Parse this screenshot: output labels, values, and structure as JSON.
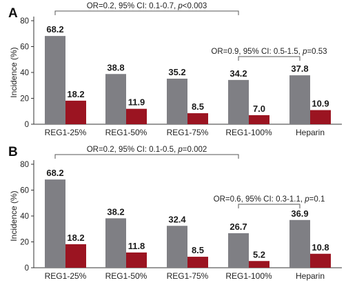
{
  "colors": {
    "series1": "#7f7f84",
    "series2": "#9b1421",
    "axis": "#333333",
    "bracket": "#555555"
  },
  "chart_data": [
    {
      "type": "bar",
      "panel_label": "A",
      "ylabel": "Incidence (%)",
      "ylim": [
        0,
        80
      ],
      "yticks": [
        0,
        20,
        40,
        60,
        80
      ],
      "categories": [
        "REG1-25%",
        "REG1-50%",
        "REG1-75%",
        "REG1-100%",
        "Heparin"
      ],
      "series": [
        {
          "values": [
            68.2,
            38.8,
            35.2,
            34.2,
            37.8
          ]
        },
        {
          "values": [
            18.2,
            11.9,
            8.5,
            7.0,
            10.9
          ]
        }
      ],
      "value_labels": [
        [
          "68.2",
          "38.8",
          "35.2",
          "34.2",
          "37.8"
        ],
        [
          "18.2",
          "11.9",
          "8.5",
          "7.0",
          "10.9"
        ]
      ],
      "annotations": [
        {
          "from": 0,
          "to": 3,
          "text": "OR=0.2, 95% CI: 0.1-0.7, ",
          "p": "p",
          "ptext": "<0.003"
        },
        {
          "from": 3,
          "to": 4,
          "text": "OR=0.9, 95% CI: 0.5-1.5, ",
          "p": "p",
          "ptext": "=0.53"
        }
      ]
    },
    {
      "type": "bar",
      "panel_label": "B",
      "ylabel": "Incidence (%)",
      "ylim": [
        0,
        80
      ],
      "yticks": [
        0,
        20,
        40,
        60,
        80
      ],
      "categories": [
        "REG1-25%",
        "REG1-50%",
        "REG1-75%",
        "REG1-100%",
        "Heparin"
      ],
      "series": [
        {
          "values": [
            68.2,
            38.2,
            32.4,
            26.7,
            36.9
          ]
        },
        {
          "values": [
            18.2,
            11.8,
            8.5,
            5.2,
            10.8
          ]
        }
      ],
      "value_labels": [
        [
          "68.2",
          "38.2",
          "32.4",
          "26.7",
          "36.9"
        ],
        [
          "18.2",
          "11.8",
          "8.5",
          "5.2",
          "10.8"
        ]
      ],
      "annotations": [
        {
          "from": 0,
          "to": 3,
          "text": "OR=0.2, 95% CI: 0.1-0.5, ",
          "p": "p",
          "ptext": "=0.002"
        },
        {
          "from": 3,
          "to": 4,
          "text": "OR=0.6, 95% CI: 0.3-1.1, ",
          "p": "p",
          "ptext": "=0.1"
        }
      ]
    }
  ]
}
